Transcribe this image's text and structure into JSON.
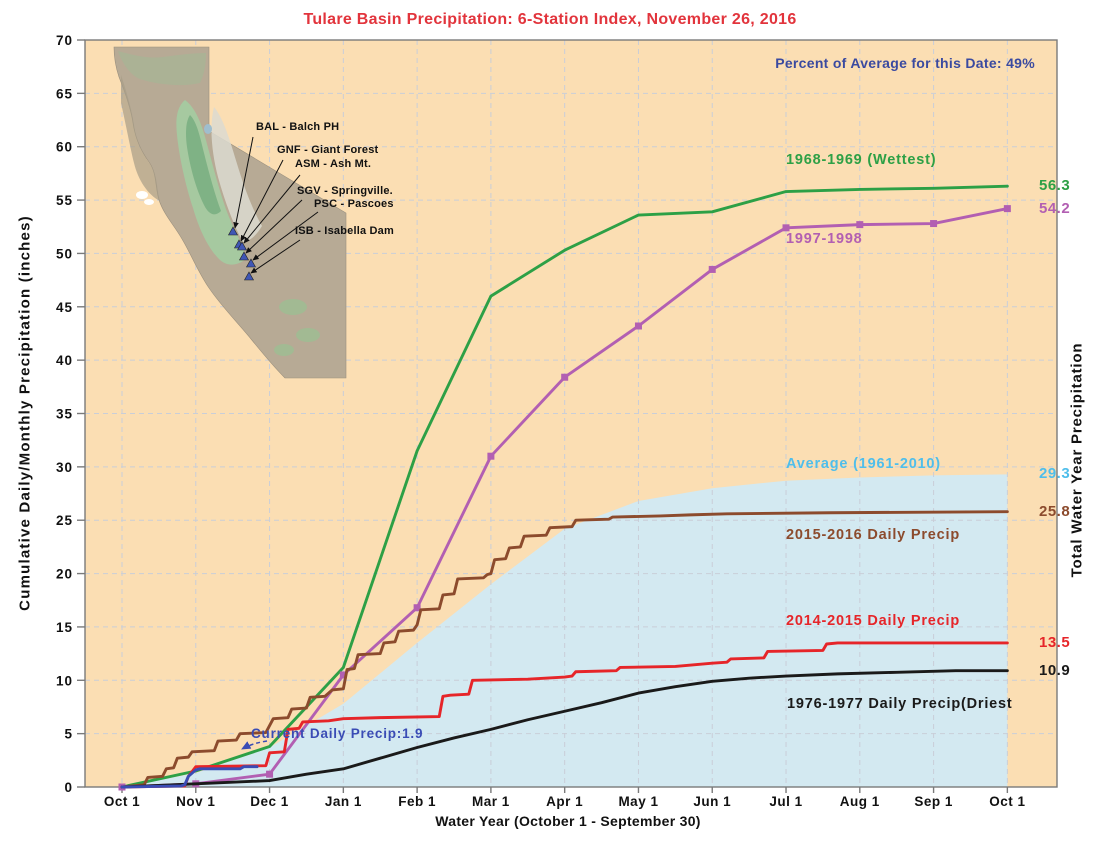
{
  "title": "Tulare Basin Precipitation: 6-Station Index, November 26, 2016",
  "chart_data": {
    "type": "line",
    "title": "Tulare Basin Precipitation: 6-Station Index, November 26, 2016",
    "annotation": "Percent of Average for this Date: 49%",
    "xlabel": "Water Year (October 1 - September 30)",
    "ylabel_left": "Cumulative Daily/Monthly Precipitation (inches)",
    "ylabel_right": "Total Water Year Precipitation",
    "x_unit": "months_after_oct_1",
    "xlim": [
      0,
      12
    ],
    "ylim": [
      0,
      70
    ],
    "y_tick_step": 5,
    "grid": true,
    "x_tick_labels": [
      "Oct 1",
      "Nov 1",
      "Dec 1",
      "Jan 1",
      "Feb 1",
      "Mar 1",
      "Apr 1",
      "May 1",
      "Jun 1",
      "Jul 1",
      "Aug 1",
      "Sep 1",
      "Oct 1"
    ],
    "series": [
      {
        "id": "average",
        "label": "Average (1961-2010)",
        "color": "#4FBEEB",
        "fill": "#D3E9F1",
        "area": true,
        "end_value": 29.3,
        "points": [
          [
            0,
            0
          ],
          [
            1,
            1.3
          ],
          [
            2,
            3.7
          ],
          [
            3,
            7.8
          ],
          [
            4,
            13.5
          ],
          [
            5,
            19.0
          ],
          [
            6,
            24.2
          ],
          [
            7,
            26.8
          ],
          [
            8,
            28.0
          ],
          [
            9,
            28.7
          ],
          [
            10,
            29.0
          ],
          [
            11,
            29.2
          ],
          [
            12,
            29.3
          ]
        ]
      },
      {
        "id": "wettest-1968-1969",
        "label": "1968-1969 (Wettest)",
        "color": "#2DA046",
        "end_value": 56.3,
        "points": [
          [
            0,
            0
          ],
          [
            1,
            1.5
          ],
          [
            2,
            3.8
          ],
          [
            3,
            11.2
          ],
          [
            4,
            31.5
          ],
          [
            5,
            46.0
          ],
          [
            6,
            50.3
          ],
          [
            7,
            53.6
          ],
          [
            8,
            53.9
          ],
          [
            9,
            55.8
          ],
          [
            10,
            56.0
          ],
          [
            11,
            56.1
          ],
          [
            12,
            56.3
          ]
        ]
      },
      {
        "id": "year-1997-1998",
        "label": "1997-1998",
        "color": "#B25FB2",
        "marker": "square",
        "end_value": 54.2,
        "points": [
          [
            0,
            0
          ],
          [
            1,
            0.3
          ],
          [
            2,
            1.2
          ],
          [
            3,
            10.5
          ],
          [
            4,
            16.8
          ],
          [
            5,
            31.0
          ],
          [
            6,
            38.4
          ],
          [
            7,
            43.2
          ],
          [
            8,
            48.5
          ],
          [
            9,
            52.4
          ],
          [
            10,
            52.7
          ],
          [
            11,
            52.8
          ],
          [
            12,
            54.2
          ]
        ]
      },
      {
        "id": "daily-2015-2016",
        "label": "2015-2016 Daily Precip",
        "color": "#8C4B2D",
        "end_value": 25.8,
        "points": [
          [
            0,
            0
          ],
          [
            0.3,
            0.2
          ],
          [
            0.35,
            0.9
          ],
          [
            0.55,
            1.0
          ],
          [
            0.6,
            1.7
          ],
          [
            0.7,
            1.8
          ],
          [
            0.75,
            2.7
          ],
          [
            0.9,
            2.8
          ],
          [
            0.95,
            3.3
          ],
          [
            1.25,
            3.4
          ],
          [
            1.3,
            4.3
          ],
          [
            1.55,
            4.4
          ],
          [
            1.6,
            5.0
          ],
          [
            1.95,
            5.1
          ],
          [
            2.05,
            6.4
          ],
          [
            2.25,
            6.5
          ],
          [
            2.3,
            7.3
          ],
          [
            2.5,
            7.4
          ],
          [
            2.55,
            8.4
          ],
          [
            2.75,
            8.5
          ],
          [
            2.85,
            9.1
          ],
          [
            3.0,
            9.2
          ],
          [
            3.05,
            11.0
          ],
          [
            3.15,
            11.1
          ],
          [
            3.2,
            12.4
          ],
          [
            3.5,
            12.5
          ],
          [
            3.55,
            13.5
          ],
          [
            3.7,
            13.6
          ],
          [
            3.75,
            14.6
          ],
          [
            3.95,
            14.7
          ],
          [
            4.0,
            15.2
          ],
          [
            4.05,
            16.6
          ],
          [
            4.3,
            16.7
          ],
          [
            4.35,
            18.0
          ],
          [
            4.5,
            18.1
          ],
          [
            4.55,
            19.5
          ],
          [
            4.9,
            19.6
          ],
          [
            4.95,
            19.9
          ],
          [
            5.0,
            20.0
          ],
          [
            5.05,
            21.3
          ],
          [
            5.2,
            21.4
          ],
          [
            5.25,
            22.4
          ],
          [
            5.4,
            22.5
          ],
          [
            5.45,
            23.5
          ],
          [
            5.75,
            23.6
          ],
          [
            5.8,
            24.3
          ],
          [
            6.1,
            24.4
          ],
          [
            6.15,
            25.0
          ],
          [
            6.6,
            25.1
          ],
          [
            6.65,
            25.3
          ],
          [
            7.3,
            25.4
          ],
          [
            7.7,
            25.5
          ],
          [
            8.2,
            25.6
          ],
          [
            9.6,
            25.7
          ],
          [
            12,
            25.8
          ]
        ]
      },
      {
        "id": "daily-2014-2015",
        "label": "2014-2015 Daily Precip",
        "color": "#E62529",
        "end_value": 13.5,
        "points": [
          [
            0,
            0
          ],
          [
            0.85,
            0.1
          ],
          [
            0.9,
            1.0
          ],
          [
            1.0,
            1.9
          ],
          [
            1.95,
            2.0
          ],
          [
            2.0,
            3.2
          ],
          [
            2.2,
            3.3
          ],
          [
            2.25,
            5.4
          ],
          [
            2.4,
            5.5
          ],
          [
            2.45,
            6.1
          ],
          [
            2.8,
            6.2
          ],
          [
            3.0,
            6.4
          ],
          [
            3.5,
            6.5
          ],
          [
            4.3,
            6.6
          ],
          [
            4.35,
            8.5
          ],
          [
            4.45,
            8.6
          ],
          [
            4.7,
            8.7
          ],
          [
            4.75,
            10.0
          ],
          [
            5.5,
            10.1
          ],
          [
            6.0,
            10.3
          ],
          [
            6.1,
            10.4
          ],
          [
            6.15,
            10.8
          ],
          [
            6.7,
            10.9
          ],
          [
            6.75,
            11.2
          ],
          [
            7.5,
            11.3
          ],
          [
            8.0,
            11.6
          ],
          [
            8.2,
            11.7
          ],
          [
            8.25,
            12.0
          ],
          [
            8.7,
            12.1
          ],
          [
            8.75,
            12.7
          ],
          [
            9.5,
            12.8
          ],
          [
            9.55,
            13.4
          ],
          [
            9.7,
            13.5
          ],
          [
            12,
            13.5
          ]
        ]
      },
      {
        "id": "driest-1976-1977",
        "label": "1976-1977 Daily Precip(Driest",
        "color": "#1A1A1A",
        "end_value": 10.9,
        "points": [
          [
            0,
            0
          ],
          [
            1,
            0.3
          ],
          [
            2,
            0.6
          ],
          [
            2.5,
            1.2
          ],
          [
            3,
            1.7
          ],
          [
            3.5,
            2.7
          ],
          [
            4,
            3.7
          ],
          [
            4.5,
            4.6
          ],
          [
            5,
            5.4
          ],
          [
            5.5,
            6.3
          ],
          [
            6,
            7.1
          ],
          [
            6.5,
            7.9
          ],
          [
            7,
            8.8
          ],
          [
            7.5,
            9.4
          ],
          [
            8,
            9.9
          ],
          [
            8.5,
            10.2
          ],
          [
            9,
            10.4
          ],
          [
            9.7,
            10.6
          ],
          [
            10.5,
            10.75
          ],
          [
            11.3,
            10.9
          ],
          [
            12,
            10.9
          ]
        ]
      },
      {
        "id": "current-2016-2017",
        "label": "Current Daily Precip:1.9",
        "color": "#3A4CB5",
        "end_value": 1.9,
        "show_end_value": false,
        "points": [
          [
            0,
            0
          ],
          [
            0.8,
            0.1
          ],
          [
            0.85,
            0.2
          ],
          [
            0.9,
            1.0
          ],
          [
            1.0,
            1.6
          ],
          [
            1.05,
            1.7
          ],
          [
            1.6,
            1.7
          ],
          [
            1.65,
            1.9
          ],
          [
            1.83,
            1.9
          ]
        ]
      }
    ]
  },
  "map_inset": {
    "stations": [
      {
        "code": "BAL",
        "label": "BAL - Balch PH"
      },
      {
        "code": "GNF",
        "label": "GNF - Giant Forest"
      },
      {
        "code": "ASM",
        "label": "ASM - Ash Mt."
      },
      {
        "code": "SGV",
        "label": "SGV - Springville."
      },
      {
        "code": "PSC",
        "label": "PSC - Pascoes"
      },
      {
        "code": "ISB",
        "label": "ISB - Isabella Dam"
      }
    ]
  },
  "colors": {
    "plot_background": "#FBDEB3",
    "figure_background": "#FFFFFF",
    "average_area_fill": "#D3E9F1",
    "gridline": "#C9CED8",
    "axis_frame": "#7A7A7A",
    "title_red": "#E2343C",
    "percent_note_blue": "#3A4AA0",
    "wettest_green": "#2DA046",
    "year1997_purple": "#B25FB2",
    "average_cyan": "#4FBEEB",
    "daily2015_brown": "#8C4B2D",
    "daily2014_red": "#E62529",
    "driest_black": "#1A1A1A",
    "current_blue": "#3A4CB5"
  }
}
